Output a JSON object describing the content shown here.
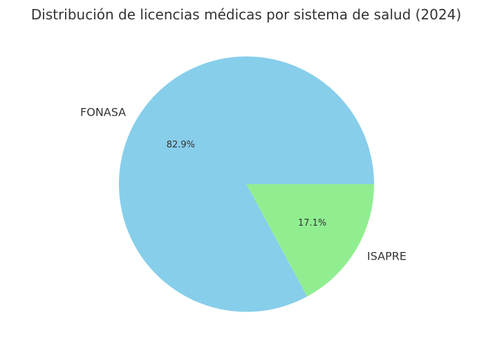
{
  "chart_data": {
    "type": "pie",
    "title": "Distribución de licencias médicas por sistema de salud (2024)",
    "start_angle": "counterclockwise from 3 o'clock",
    "slices": [
      {
        "label": "FONASA",
        "value": 82.9,
        "pct_label": "82.9%",
        "color": "#87CEEB"
      },
      {
        "label": "ISAPRE",
        "value": 17.1,
        "pct_label": "17.1%",
        "color": "#90EE90"
      }
    ]
  }
}
